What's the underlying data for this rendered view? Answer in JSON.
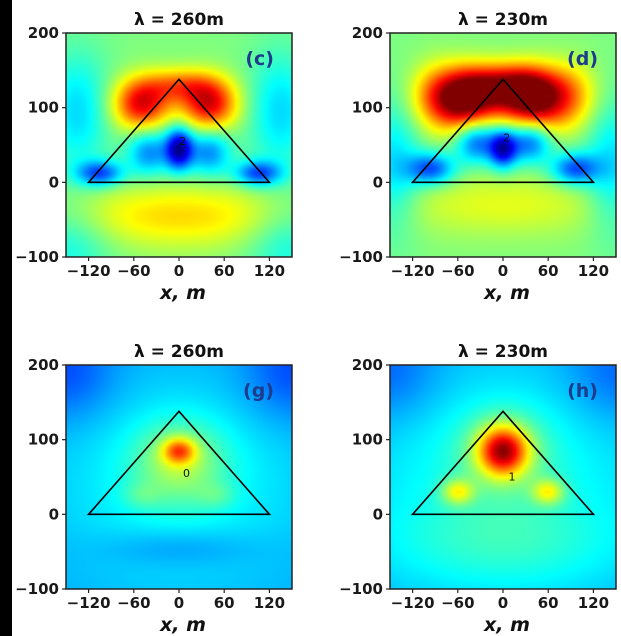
{
  "figure": {
    "colormap": "jet",
    "colors": {
      "outline": "#000000",
      "frame": "#222222",
      "label_text": "#1f3b8c"
    }
  },
  "chart_data": [
    {
      "type": "heatmap",
      "title": "λ = 260m",
      "panel_label": "(c)",
      "xlabel": "x, m",
      "ylabel": "",
      "xlim": [
        -150,
        150
      ],
      "ylim": [
        -100,
        200
      ],
      "xticks": [
        -120,
        -60,
        0,
        60,
        120
      ],
      "xtick_labels": [
        "−120",
        "−60",
        "0",
        "60",
        "120"
      ],
      "yticks": [
        -100,
        0,
        100,
        200
      ],
      "ytick_labels": [
        "−100",
        "0",
        "100",
        "200"
      ],
      "triangle_vertices": [
        [
          -120,
          0
        ],
        [
          120,
          0
        ],
        [
          0,
          138
        ]
      ],
      "inner_label": {
        "text": "2",
        "x": 5,
        "y": 50
      },
      "field": {
        "background": 0.5,
        "sources": [
          {
            "x": -50,
            "y": 105,
            "sx": 26,
            "sy": 24,
            "amp": 0.4
          },
          {
            "x": 40,
            "y": 105,
            "sx": 26,
            "sy": 24,
            "amp": 0.4
          },
          {
            "x": 0,
            "y": 130,
            "sx": 32,
            "sy": 16,
            "amp": 0.22
          },
          {
            "x": -105,
            "y": 12,
            "sx": 22,
            "sy": 12,
            "amp": -0.3
          },
          {
            "x": 105,
            "y": 12,
            "sx": 22,
            "sy": 12,
            "amp": -0.3
          },
          {
            "x": -40,
            "y": 40,
            "sx": 20,
            "sy": 22,
            "amp": -0.24
          },
          {
            "x": 40,
            "y": 40,
            "sx": 20,
            "sy": 22,
            "amp": -0.24
          },
          {
            "x": 0,
            "y": 45,
            "sx": 13,
            "sy": 20,
            "amp": -0.45
          },
          {
            "x": -135,
            "y": 95,
            "sx": 30,
            "sy": 55,
            "amp": -0.16
          },
          {
            "x": 135,
            "y": 95,
            "sx": 30,
            "sy": 55,
            "amp": -0.16
          },
          {
            "x": 0,
            "y": -45,
            "sx": 120,
            "sy": 30,
            "amp": 0.16
          },
          {
            "x": -145,
            "y": -80,
            "sx": 40,
            "sy": 40,
            "amp": -0.12
          },
          {
            "x": 145,
            "y": -80,
            "sx": 40,
            "sy": 40,
            "amp": -0.12
          }
        ]
      }
    },
    {
      "type": "heatmap",
      "title": "λ = 230m",
      "panel_label": "(d)",
      "xlabel": "x, m",
      "ylabel": "",
      "xlim": [
        -150,
        150
      ],
      "ylim": [
        -100,
        200
      ],
      "xticks": [
        -120,
        -60,
        0,
        60,
        120
      ],
      "xtick_labels": [
        "−120",
        "−60",
        "0",
        "60",
        "120"
      ],
      "yticks": [
        -100,
        0,
        100,
        200
      ],
      "ytick_labels": [
        "−100",
        "0",
        "100",
        "200"
      ],
      "triangle_vertices": [
        [
          -120,
          0
        ],
        [
          120,
          0
        ],
        [
          0,
          138
        ]
      ],
      "inner_label": {
        "text": "2",
        "x": 5,
        "y": 55
      },
      "field": {
        "background": 0.5,
        "sources": [
          {
            "x": -50,
            "y": 110,
            "sx": 30,
            "sy": 28,
            "amp": 0.5
          },
          {
            "x": 40,
            "y": 110,
            "sx": 30,
            "sy": 28,
            "amp": 0.5
          },
          {
            "x": 0,
            "y": 130,
            "sx": 40,
            "sy": 20,
            "amp": 0.35
          },
          {
            "x": -90,
            "y": 115,
            "sx": 25,
            "sy": 30,
            "amp": 0.18
          },
          {
            "x": 90,
            "y": 115,
            "sx": 25,
            "sy": 30,
            "amp": 0.18
          },
          {
            "x": -95,
            "y": 18,
            "sx": 22,
            "sy": 15,
            "amp": -0.3
          },
          {
            "x": 95,
            "y": 18,
            "sx": 22,
            "sy": 15,
            "amp": -0.3
          },
          {
            "x": -35,
            "y": 55,
            "sx": 20,
            "sy": 20,
            "amp": -0.3
          },
          {
            "x": 35,
            "y": 55,
            "sx": 20,
            "sy": 20,
            "amp": -0.3
          },
          {
            "x": 0,
            "y": 45,
            "sx": 13,
            "sy": 18,
            "amp": -0.4
          },
          {
            "x": -145,
            "y": 20,
            "sx": 25,
            "sy": 60,
            "amp": -0.16
          },
          {
            "x": 145,
            "y": 20,
            "sx": 25,
            "sy": 60,
            "amp": -0.16
          },
          {
            "x": 0,
            "y": -30,
            "sx": 110,
            "sy": 30,
            "amp": 0.1
          }
        ]
      }
    },
    {
      "type": "heatmap",
      "title": "λ = 260m",
      "panel_label": "(g)",
      "xlabel": "x, m",
      "ylabel": "",
      "xlim": [
        -150,
        150
      ],
      "ylim": [
        -100,
        200
      ],
      "xticks": [
        -120,
        -60,
        0,
        60,
        120
      ],
      "xtick_labels": [
        "−120",
        "−60",
        "0",
        "60",
        "120"
      ],
      "yticks": [
        -100,
        0,
        100,
        200
      ],
      "ytick_labels": [
        "−100",
        "0",
        "100",
        "200"
      ],
      "triangle_vertices": [
        [
          -120,
          0
        ],
        [
          120,
          0
        ],
        [
          0,
          138
        ]
      ],
      "inner_label": {
        "text": "0",
        "x": 10,
        "y": 50
      },
      "field": {
        "background": 0.28,
        "sources": [
          {
            "x": 0,
            "y": 40,
            "sx": 140,
            "sy": 110,
            "amp": 0.1
          },
          {
            "x": 0,
            "y": 70,
            "sx": 42,
            "sy": 38,
            "amp": 0.18
          },
          {
            "x": 0,
            "y": 85,
            "sx": 15,
            "sy": 12,
            "amp": 0.3
          },
          {
            "x": -150,
            "y": 190,
            "sx": 45,
            "sy": 45,
            "amp": -0.1
          },
          {
            "x": 150,
            "y": 190,
            "sx": 45,
            "sy": 45,
            "amp": -0.1
          },
          {
            "x": 0,
            "y": -45,
            "sx": 70,
            "sy": 18,
            "amp": -0.06
          },
          {
            "x": -50,
            "y": 25,
            "sx": 18,
            "sy": 12,
            "amp": 0.06
          },
          {
            "x": 50,
            "y": 25,
            "sx": 18,
            "sy": 12,
            "amp": 0.06
          }
        ]
      }
    },
    {
      "type": "heatmap",
      "title": "λ = 230m",
      "panel_label": "(h)",
      "xlabel": "x, m",
      "ylabel": "",
      "xlim": [
        -150,
        150
      ],
      "ylim": [
        -100,
        200
      ],
      "xticks": [
        -120,
        -60,
        0,
        60,
        120
      ],
      "xtick_labels": [
        "−120",
        "−60",
        "0",
        "60",
        "120"
      ],
      "yticks": [
        -100,
        0,
        100,
        200
      ],
      "ytick_labels": [
        "−100",
        "0",
        "100",
        "200"
      ],
      "triangle_vertices": [
        [
          -120,
          0
        ],
        [
          120,
          0
        ],
        [
          0,
          138
        ]
      ],
      "inner_label": {
        "text": "1",
        "x": 12,
        "y": 45
      },
      "field": {
        "background": 0.28,
        "sources": [
          {
            "x": 0,
            "y": 40,
            "sx": 150,
            "sy": 120,
            "amp": 0.12
          },
          {
            "x": 0,
            "y": 85,
            "sx": 22,
            "sy": 22,
            "amp": 0.45
          },
          {
            "x": 0,
            "y": 85,
            "sx": 40,
            "sy": 38,
            "amp": 0.15
          },
          {
            "x": -60,
            "y": 30,
            "sx": 15,
            "sy": 12,
            "amp": 0.22
          },
          {
            "x": 60,
            "y": 30,
            "sx": 15,
            "sy": 12,
            "amp": 0.22
          },
          {
            "x": -150,
            "y": 190,
            "sx": 45,
            "sy": 45,
            "amp": -0.08
          },
          {
            "x": 150,
            "y": 190,
            "sx": 45,
            "sy": 45,
            "amp": -0.08
          },
          {
            "x": 0,
            "y": -40,
            "sx": 120,
            "sy": 40,
            "amp": 0.06
          }
        ]
      }
    }
  ]
}
